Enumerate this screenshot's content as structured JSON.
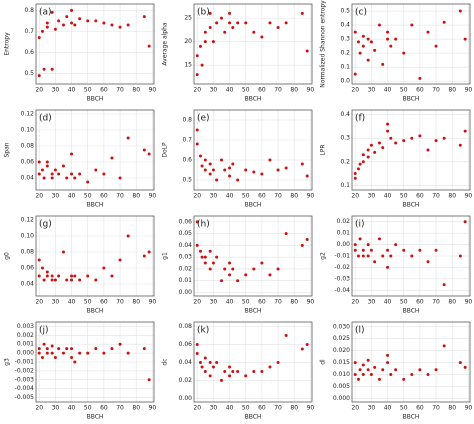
{
  "chart_data": [
    {
      "type": "scatter",
      "title": "(a)",
      "x_label": "BBCH",
      "y_label": "Entropy",
      "color": "#cc1111",
      "grid": true,
      "x": [
        20,
        20,
        22,
        23,
        25,
        25,
        28,
        28,
        30,
        32,
        35,
        37,
        40,
        40,
        42,
        45,
        50,
        55,
        60,
        65,
        70,
        75,
        85,
        88
      ],
      "y": [
        0.49,
        0.67,
        0.7,
        0.52,
        0.72,
        0.74,
        0.79,
        0.52,
        0.71,
        0.75,
        0.73,
        0.77,
        0.8,
        0.74,
        0.73,
        0.76,
        0.75,
        0.75,
        0.74,
        0.73,
        0.72,
        0.73,
        0.77,
        0.63
      ],
      "xlim": [
        18,
        91
      ],
      "ylim": [
        0.45,
        0.83
      ],
      "xticks": [
        20,
        30,
        40,
        50,
        60,
        70,
        80,
        90
      ],
      "yticks": [
        0.5,
        0.6,
        0.7,
        0.8
      ]
    },
    {
      "type": "scatter",
      "title": "(b)",
      "x_label": "BBCH",
      "y_label": "Average alpha",
      "color": "#cc1111",
      "grid": true,
      "x": [
        20,
        20,
        22,
        23,
        25,
        25,
        28,
        28,
        30,
        32,
        35,
        37,
        40,
        40,
        42,
        45,
        50,
        55,
        60,
        65,
        70,
        75,
        85,
        88
      ],
      "y": [
        13,
        17,
        19,
        15,
        20,
        22,
        23,
        26,
        20,
        24,
        25,
        22,
        24,
        26,
        23,
        24,
        24,
        22,
        21,
        24,
        23,
        24,
        26,
        18
      ],
      "xlim": [
        18,
        91
      ],
      "ylim": [
        11,
        28
      ],
      "xticks": [
        20,
        30,
        40,
        50,
        60,
        70,
        80,
        90
      ],
      "yticks": [
        15,
        20,
        25
      ]
    },
    {
      "type": "scatter",
      "title": "(c)",
      "x_label": "BBCH",
      "y_label": "Normalized Shannon entropy",
      "color": "#cc1111",
      "grid": true,
      "x": [
        20,
        20,
        22,
        23,
        25,
        25,
        28,
        28,
        30,
        32,
        35,
        37,
        40,
        40,
        42,
        45,
        50,
        55,
        60,
        65,
        70,
        75,
        85,
        88
      ],
      "y": [
        0.35,
        0.05,
        0.28,
        0.2,
        0.32,
        0.25,
        0.3,
        0.15,
        0.28,
        0.22,
        0.4,
        0.12,
        0.3,
        0.35,
        0.25,
        0.3,
        0.2,
        0.4,
        0.02,
        0.35,
        0.25,
        0.42,
        0.5,
        0.3
      ],
      "xlim": [
        18,
        91
      ],
      "ylim": [
        -0.02,
        0.55
      ],
      "xticks": [
        20,
        30,
        40,
        50,
        60,
        70,
        80,
        90
      ],
      "yticks": [
        {
          "value": 0,
          "label": "0.0"
        },
        0.1,
        0.2,
        0.3,
        0.4,
        0.5
      ]
    },
    {
      "type": "scatter",
      "title": "(d)",
      "x_label": "BBCH",
      "y_label": "Span",
      "color": "#cc1111",
      "grid": true,
      "x": [
        20,
        20,
        22,
        23,
        25,
        25,
        28,
        28,
        30,
        32,
        35,
        37,
        40,
        40,
        42,
        45,
        50,
        55,
        60,
        65,
        70,
        75,
        85,
        88
      ],
      "y": [
        0.045,
        0.06,
        0.05,
        0.04,
        0.055,
        0.06,
        0.045,
        0.04,
        0.05,
        0.045,
        0.055,
        0.04,
        0.045,
        0.07,
        0.04,
        0.045,
        0.035,
        0.05,
        0.045,
        0.065,
        0.04,
        0.09,
        0.075,
        0.07
      ],
      "xlim": [
        18,
        91
      ],
      "ylim": [
        0.025,
        0.125
      ],
      "xticks": [
        20,
        30,
        40,
        50,
        60,
        70,
        80,
        90
      ],
      "yticks": [
        0.04,
        0.06,
        0.08,
        {
          "value": 0.1,
          "label": "0.10"
        },
        0.12
      ]
    },
    {
      "type": "scatter",
      "title": "(e)",
      "x_label": "BBCH",
      "y_label": "DoLP",
      "color": "#cc1111",
      "grid": true,
      "x": [
        20,
        20,
        22,
        23,
        25,
        25,
        28,
        28,
        30,
        32,
        35,
        37,
        40,
        40,
        42,
        45,
        50,
        55,
        60,
        65,
        70,
        75,
        85,
        88
      ],
      "y": [
        0.75,
        0.68,
        0.62,
        0.57,
        0.6,
        0.55,
        0.58,
        0.53,
        0.55,
        0.5,
        0.6,
        0.55,
        0.56,
        0.52,
        0.58,
        0.5,
        0.55,
        0.54,
        0.53,
        0.6,
        0.55,
        0.56,
        0.58,
        0.52
      ],
      "xlim": [
        18,
        91
      ],
      "ylim": [
        0.45,
        0.85
      ],
      "xticks": [
        20,
        30,
        40,
        50,
        60,
        70,
        80,
        90
      ],
      "yticks": [
        0.5,
        0.6,
        0.7,
        0.8
      ]
    },
    {
      "type": "scatter",
      "title": "(f)",
      "x_label": "BBCH",
      "y_label": "LPR",
      "color": "#cc1111",
      "grid": true,
      "x": [
        20,
        20,
        22,
        23,
        25,
        25,
        28,
        28,
        30,
        32,
        35,
        37,
        40,
        40,
        42,
        45,
        50,
        55,
        60,
        65,
        70,
        75,
        85,
        88
      ],
      "y": [
        0.13,
        0.15,
        0.17,
        0.19,
        0.2,
        0.23,
        0.22,
        0.25,
        0.27,
        0.24,
        0.28,
        0.26,
        0.33,
        0.36,
        0.3,
        0.28,
        0.29,
        0.3,
        0.31,
        0.25,
        0.29,
        0.3,
        0.27,
        0.33
      ],
      "xlim": [
        18,
        91
      ],
      "ylim": [
        0.08,
        0.42
      ],
      "xticks": [
        20,
        30,
        40,
        50,
        60,
        70,
        80,
        90
      ],
      "yticks": [
        0.1,
        0.2,
        0.3,
        0.4
      ]
    },
    {
      "type": "scatter",
      "title": "(g)",
      "x_label": "BBCH",
      "y_label": "g0",
      "color": "#cc1111",
      "grid": true,
      "x": [
        20,
        20,
        22,
        23,
        25,
        25,
        28,
        28,
        30,
        32,
        35,
        37,
        40,
        40,
        42,
        45,
        50,
        55,
        60,
        65,
        70,
        75,
        85,
        88
      ],
      "y": [
        0.07,
        0.05,
        0.06,
        0.045,
        0.055,
        0.05,
        0.045,
        0.05,
        0.045,
        0.05,
        0.08,
        0.045,
        0.05,
        0.045,
        0.05,
        0.045,
        0.05,
        0.045,
        0.06,
        0.05,
        0.07,
        0.1,
        0.075,
        0.08
      ],
      "xlim": [
        18,
        91
      ],
      "ylim": [
        0.025,
        0.125
      ],
      "xticks": [
        20,
        30,
        40,
        50,
        60,
        70,
        80,
        90
      ],
      "yticks": [
        0.04,
        0.06,
        0.08,
        {
          "value": 0.1,
          "label": "0.10"
        },
        0.12
      ]
    },
    {
      "type": "scatter",
      "title": "(h)",
      "x_label": "BBCH",
      "y_label": "g1",
      "color": "#cc1111",
      "grid": true,
      "x": [
        20,
        20,
        22,
        23,
        25,
        25,
        28,
        28,
        30,
        32,
        35,
        37,
        40,
        40,
        42,
        45,
        50,
        55,
        60,
        65,
        70,
        75,
        85,
        88
      ],
      "y": [
        0.06,
        0.04,
        0.035,
        0.03,
        0.025,
        0.03,
        0.035,
        0.02,
        0.025,
        0.03,
        0.01,
        0.02,
        0.025,
        0.015,
        0.02,
        0.01,
        0.015,
        0.02,
        0.025,
        0.015,
        0.02,
        0.05,
        0.04,
        0.045
      ],
      "xlim": [
        18,
        91
      ],
      "ylim": [
        -0.003,
        0.065
      ],
      "xticks": [
        20,
        30,
        40,
        50,
        60,
        70,
        80,
        90
      ],
      "yticks": [
        {
          "value": 0,
          "label": "0.00"
        },
        0.01,
        0.02,
        0.03,
        0.04,
        0.05,
        0.06
      ]
    },
    {
      "type": "scatter",
      "title": "(i)",
      "x_label": "BBCH",
      "y_label": "g2",
      "color": "#cc1111",
      "grid": true,
      "x": [
        20,
        20,
        22,
        23,
        25,
        25,
        28,
        28,
        30,
        32,
        35,
        37,
        40,
        40,
        42,
        45,
        50,
        55,
        60,
        65,
        70,
        75,
        85,
        88
      ],
      "y": [
        0,
        -0.005,
        -0.01,
        0.005,
        -0.01,
        -0.005,
        0,
        -0.01,
        -0.005,
        -0.015,
        0.005,
        -0.01,
        -0.005,
        -0.02,
        -0.01,
        0,
        -0.005,
        -0.01,
        -0.005,
        -0.015,
        -0.005,
        -0.035,
        -0.01,
        0.02
      ],
      "xlim": [
        18,
        91
      ],
      "ylim": [
        -0.045,
        0.025
      ],
      "xticks": [
        20,
        30,
        40,
        50,
        60,
        70,
        80,
        90
      ],
      "yticks": [
        -0.04,
        -0.03,
        -0.02,
        -0.01,
        {
          "value": 0,
          "label": "0.00"
        },
        0.01,
        0.02
      ]
    },
    {
      "type": "scatter",
      "title": "(j)",
      "x_label": "BBCH",
      "y_label": "g3",
      "color": "#cc1111",
      "grid": true,
      "x": [
        20,
        20,
        22,
        23,
        25,
        25,
        28,
        28,
        30,
        32,
        35,
        37,
        40,
        40,
        42,
        45,
        50,
        55,
        60,
        65,
        70,
        75,
        85,
        88
      ],
      "y": [
        0.0005,
        0,
        -0.0005,
        0.001,
        0,
        0.0005,
        0.0008,
        0,
        -0.0005,
        0.0005,
        0,
        0.0005,
        -0.0005,
        0.0005,
        -0.001,
        0,
        0,
        0.0005,
        0,
        0.0005,
        0.001,
        0,
        0.0005,
        -0.003
      ],
      "xlim": [
        18,
        91
      ],
      "ylim": [
        -0.0055,
        0.0035
      ],
      "xticks": [
        20,
        30,
        40,
        50,
        60,
        70,
        80,
        90
      ],
      "yticks": [
        -0.005,
        -0.004,
        -0.003,
        -0.002,
        -0.001,
        {
          "value": 0,
          "label": "0.000"
        },
        0.001,
        0.002,
        0.003
      ]
    },
    {
      "type": "scatter",
      "title": "(k)",
      "x_label": "BBCH",
      "y_label": "dc",
      "color": "#cc1111",
      "grid": true,
      "x": [
        20,
        20,
        22,
        23,
        25,
        25,
        28,
        28,
        30,
        32,
        35,
        37,
        40,
        40,
        42,
        45,
        50,
        55,
        60,
        65,
        70,
        75,
        85,
        88
      ],
      "y": [
        0.06,
        0.05,
        0.04,
        0.035,
        0.045,
        0.03,
        0.04,
        0.025,
        0.035,
        0.04,
        0.02,
        0.03,
        0.035,
        0.025,
        0.03,
        0.03,
        0.025,
        0.03,
        0.03,
        0.035,
        0.04,
        0.07,
        0.055,
        0.06
      ],
      "xlim": [
        18,
        91
      ],
      "ylim": [
        -0.004,
        0.085
      ],
      "xticks": [
        20,
        30,
        40,
        50,
        60,
        70,
        80,
        90
      ],
      "yticks": [
        {
          "value": 0,
          "label": "0.00"
        },
        0.02,
        0.04,
        0.06,
        0.08
      ]
    },
    {
      "type": "scatter",
      "title": "(l)",
      "x_label": "BBCH",
      "y_label": "dl",
      "color": "#cc1111",
      "grid": true,
      "x": [
        20,
        20,
        22,
        23,
        25,
        25,
        28,
        28,
        30,
        32,
        35,
        37,
        40,
        40,
        42,
        45,
        50,
        55,
        60,
        65,
        70,
        75,
        85,
        88
      ],
      "y": [
        0.01,
        0.015,
        0.008,
        0.012,
        0.01,
        0.014,
        0.012,
        0.016,
        0.01,
        0.013,
        0.008,
        0.012,
        0.015,
        0.018,
        0.01,
        0.012,
        0.008,
        0.01,
        0.012,
        0.01,
        0.012,
        0.022,
        0.015,
        0.013
      ],
      "xlim": [
        18,
        91
      ],
      "ylim": [
        -0.0015,
        0.032
      ],
      "xticks": [
        20,
        30,
        40,
        50,
        60,
        70,
        80,
        90
      ],
      "yticks": [
        {
          "value": 0,
          "label": "0.000"
        },
        0.005,
        {
          "value": 0.01,
          "label": "0.010"
        },
        0.015,
        {
          "value": 0.02,
          "label": "0.020"
        },
        0.025,
        {
          "value": 0.03,
          "label": "0.030"
        }
      ]
    }
  ]
}
